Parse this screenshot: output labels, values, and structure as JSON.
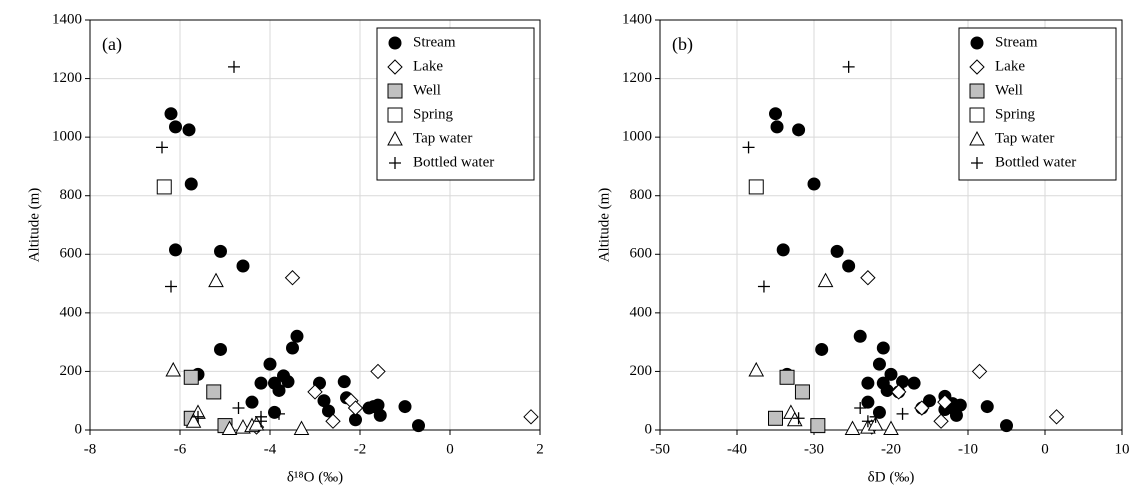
{
  "chart_data": [
    {
      "type": "scatter",
      "panel_label": "(a)",
      "xlabel": "δ¹⁸O (‰)",
      "ylabel": "Altitude (m)",
      "xlim": [
        -8,
        2
      ],
      "xticks": [
        -8,
        -6,
        -4,
        -2,
        0,
        2
      ],
      "ylim": [
        0,
        1400
      ],
      "yticks": [
        0,
        200,
        400,
        600,
        800,
        1000,
        1200,
        1400
      ],
      "grid": true,
      "legend": "upper right",
      "series": [
        {
          "name": "Stream",
          "marker": "circle",
          "color": "#000000",
          "x": [
            -6.2,
            -6.1,
            -5.8,
            -5.75,
            -6.1,
            -5.1,
            -4.6,
            -5.1,
            -5.6,
            -3.4,
            -3.5,
            -4.0,
            -3.9,
            -4.2,
            -3.7,
            -3.6,
            -3.8,
            -2.9,
            -2.35,
            -2.3,
            -2.8,
            -2.7,
            -4.4,
            -3.9,
            -1.7,
            -1.6,
            -1.8,
            -1.0,
            -1.55,
            -2.1,
            -0.7
          ],
          "values": [
            1080,
            1035,
            1025,
            840,
            615,
            610,
            560,
            275,
            190,
            320,
            280,
            225,
            160,
            160,
            185,
            165,
            135,
            160,
            165,
            110,
            100,
            65,
            95,
            60,
            80,
            85,
            75,
            80,
            50,
            35,
            15
          ]
        },
        {
          "name": "Lake",
          "marker": "diamond",
          "color": "#ffffff",
          "x": [
            -3.5,
            -3.0,
            -2.2,
            -2.1,
            -1.6,
            -2.6,
            -4.3,
            1.8
          ],
          "values": [
            520,
            130,
            100,
            75,
            200,
            30,
            10,
            45
          ]
        },
        {
          "name": "Well",
          "marker": "square",
          "color": "#c0c0c0",
          "x": [
            -5.75,
            -5.25,
            -5.75,
            -5.0
          ],
          "values": [
            180,
            130,
            40,
            15
          ]
        },
        {
          "name": "Spring",
          "marker": "square",
          "color": "#ffffff",
          "x": [
            -6.35
          ],
          "values": [
            830
          ]
        },
        {
          "name": "Tap water",
          "marker": "triangle",
          "color": "#ffffff",
          "x": [
            -5.2,
            -6.15,
            -5.6,
            -4.9,
            -4.6,
            -4.4,
            -3.3,
            -4.3,
            -5.7
          ],
          "values": [
            510,
            205,
            60,
            5,
            10,
            15,
            5,
            20,
            30
          ]
        },
        {
          "name": "Bottled water",
          "marker": "plus",
          "color": "#000000",
          "x": [
            -4.8,
            -6.4,
            -6.2,
            -4.7,
            -4.2,
            -3.8,
            -5.6,
            -4.2
          ],
          "values": [
            1240,
            965,
            490,
            75,
            45,
            55,
            45,
            30
          ]
        }
      ]
    },
    {
      "type": "scatter",
      "panel_label": "(b)",
      "xlabel": "δD (‰)",
      "ylabel": "Altitude (m)",
      "xlim": [
        -50,
        10
      ],
      "xticks": [
        -50,
        -40,
        -30,
        -20,
        -10,
        0,
        10
      ],
      "ylim": [
        0,
        1400
      ],
      "yticks": [
        0,
        200,
        400,
        600,
        800,
        1000,
        1200,
        1400
      ],
      "grid": true,
      "legend": "upper right",
      "series": [
        {
          "name": "Stream",
          "marker": "circle",
          "color": "#000000",
          "x": [
            -35,
            -34.8,
            -32,
            -30,
            -34,
            -27,
            -25.5,
            -29,
            -33.5,
            -24,
            -21,
            -21.5,
            -23,
            -21,
            -20,
            -18.5,
            -17,
            -20.5,
            -15,
            -13,
            -12,
            -11,
            -11.5,
            -21.5,
            -23,
            -16,
            -13,
            -12,
            -7.5,
            -5,
            -19
          ],
          "values": [
            1080,
            1035,
            1025,
            840,
            615,
            610,
            560,
            275,
            190,
            320,
            280,
            225,
            160,
            160,
            190,
            165,
            160,
            135,
            100,
            115,
            90,
            85,
            50,
            60,
            95,
            75,
            70,
            75,
            80,
            15,
            130
          ]
        },
        {
          "name": "Lake",
          "marker": "diamond",
          "color": "#ffffff",
          "x": [
            -23,
            -19,
            -13,
            -16,
            -8.5,
            -13.5,
            -22.5,
            1.5
          ],
          "values": [
            520,
            130,
            95,
            75,
            200,
            30,
            10,
            45
          ]
        },
        {
          "name": "Well",
          "marker": "square",
          "color": "#c0c0c0",
          "x": [
            -33.5,
            -31.5,
            -35,
            -29.5
          ],
          "values": [
            180,
            130,
            40,
            15
          ]
        },
        {
          "name": "Spring",
          "marker": "square",
          "color": "#ffffff",
          "x": [
            -37.5
          ],
          "values": [
            830
          ]
        },
        {
          "name": "Tap water",
          "marker": "triangle",
          "color": "#ffffff",
          "x": [
            -28.5,
            -37.5,
            -33,
            -25,
            -23,
            -20,
            -22,
            -32.5
          ],
          "values": [
            510,
            205,
            60,
            5,
            10,
            5,
            20,
            35
          ]
        },
        {
          "name": "Bottled water",
          "marker": "plus",
          "color": "#000000",
          "x": [
            -25.5,
            -38.5,
            -36.5,
            -24,
            -22,
            -18.5,
            -32,
            -23
          ],
          "values": [
            1240,
            965,
            490,
            75,
            45,
            55,
            40,
            30
          ]
        }
      ]
    }
  ]
}
